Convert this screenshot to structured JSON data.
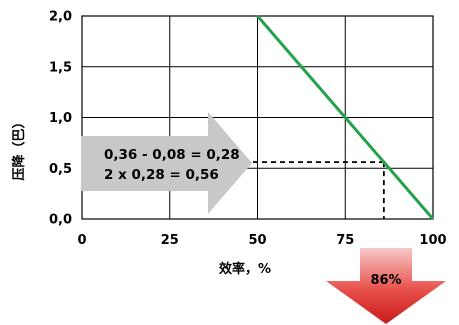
{
  "chart_data": {
    "type": "line",
    "title": "",
    "xlabel": "效率，%",
    "ylabel": "压降（巴）",
    "xlim": [
      0,
      100
    ],
    "ylim": [
      0,
      2
    ],
    "x_ticks": [
      0,
      25,
      50,
      75,
      100
    ],
    "x_tick_labels": [
      "0",
      "25",
      "50",
      "75",
      "100"
    ],
    "y_ticks": [
      0,
      0.5,
      1,
      1.5,
      2
    ],
    "y_tick_labels": [
      "0,0",
      "0,5",
      "1,0",
      "1,5",
      "2,0"
    ],
    "grid": true,
    "series": [
      {
        "color": "#22a34a",
        "x": [
          50,
          100
        ],
        "y": [
          2.0,
          0.0
        ]
      }
    ],
    "reference": {
      "y": 0.56,
      "x": 86
    },
    "annotations": {
      "calc_line1": "0,36 - 0,08 = 0,28",
      "calc_line2": "2 x 0,28 = 0,56",
      "result": "86%"
    }
  }
}
